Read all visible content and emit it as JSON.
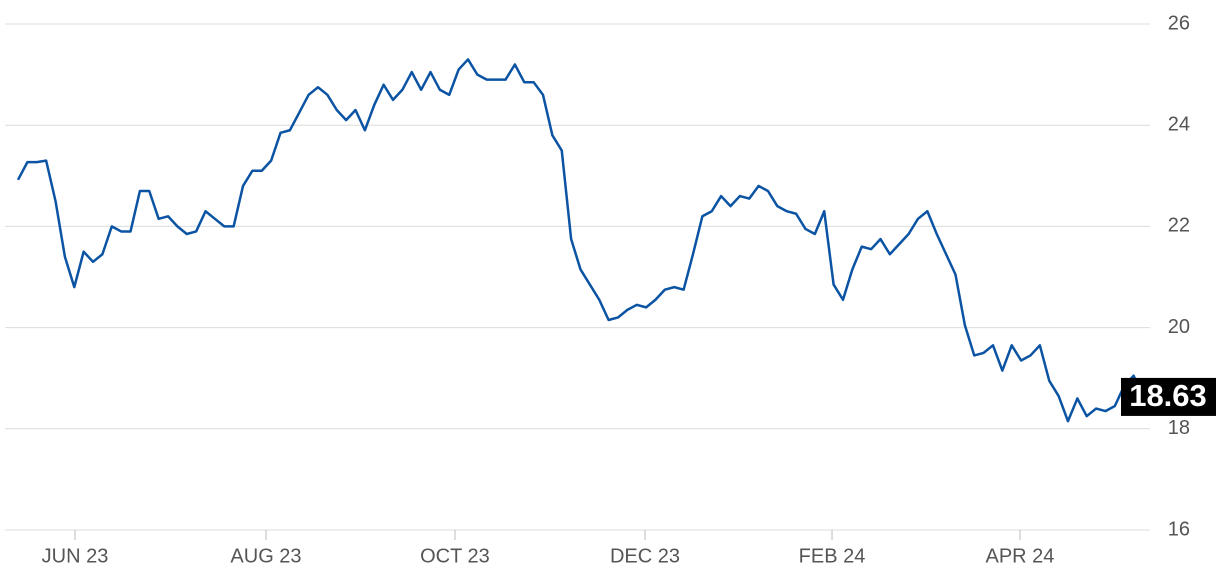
{
  "chart_data": {
    "type": "line",
    "values": [
      22.92,
      23.27,
      23.27,
      23.3,
      22.5,
      21.4,
      20.8,
      21.5,
      21.3,
      21.45,
      22.0,
      21.9,
      21.9,
      22.7,
      22.7,
      22.15,
      22.2,
      22.0,
      21.85,
      21.9,
      22.3,
      22.15,
      22.0,
      22.0,
      22.8,
      23.1,
      23.1,
      23.3,
      23.85,
      23.9,
      24.25,
      24.6,
      24.75,
      24.6,
      24.3,
      24.1,
      24.3,
      23.9,
      24.4,
      24.8,
      24.5,
      24.7,
      25.05,
      24.7,
      25.05,
      24.7,
      24.6,
      25.1,
      25.3,
      25.0,
      24.9,
      24.9,
      24.9,
      25.2,
      24.85,
      24.85,
      24.6,
      23.8,
      23.5,
      21.75,
      21.15,
      20.85,
      20.55,
      20.15,
      20.2,
      20.35,
      20.45,
      20.4,
      20.55,
      20.75,
      20.8,
      20.75,
      21.45,
      22.2,
      22.3,
      22.6,
      22.4,
      22.6,
      22.55,
      22.8,
      22.7,
      22.4,
      22.3,
      22.25,
      21.95,
      21.85,
      22.3,
      20.85,
      20.55,
      21.15,
      21.6,
      21.55,
      21.75,
      21.45,
      21.65,
      21.85,
      22.15,
      22.3,
      21.85,
      21.45,
      21.05,
      20.05,
      19.45,
      19.5,
      19.65,
      19.15,
      19.65,
      19.35,
      19.45,
      19.65,
      18.95,
      18.65,
      18.15,
      18.6,
      18.25,
      18.4,
      18.35,
      18.45,
      18.85,
      19.05,
      18.63
    ],
    "color": "#0b53a3",
    "last_value": 18.63,
    "xlim": [
      -1.39,
      120.75
    ],
    "xticks": [
      {
        "value": 6.08,
        "label": "JUN 23"
      },
      {
        "value": 26.45,
        "label": "AUG 23"
      },
      {
        "value": 46.61,
        "label": "OCT 23"
      },
      {
        "value": 66.88,
        "label": "DEC 23"
      },
      {
        "value": 86.83,
        "label": "FEB 24"
      },
      {
        "value": 106.88,
        "label": "APR 24"
      }
    ],
    "ylim": [
      16,
      26
    ],
    "yticks": [
      16,
      18,
      20,
      22,
      24,
      26
    ],
    "grid": true
  }
}
